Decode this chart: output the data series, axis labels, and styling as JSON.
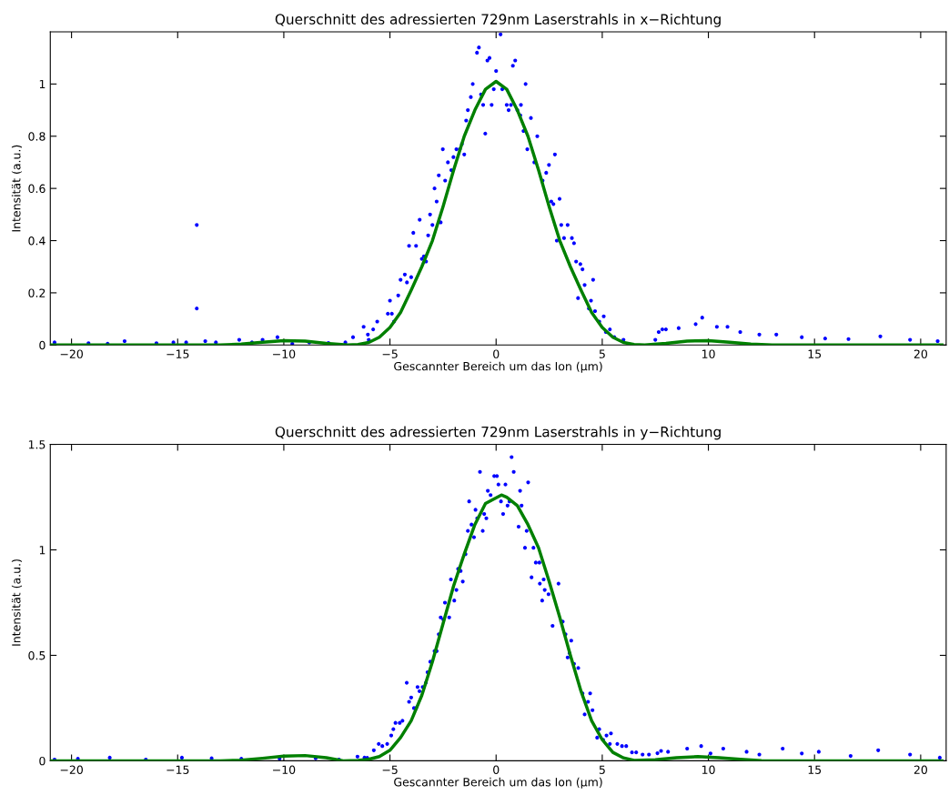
{
  "chart_data": [
    {
      "type": "scatter",
      "title": "Querschnitt des adressierten 729nm Laserstrahls in x−Richtung",
      "xlabel": "Gescannter Bereich um das Ion (µm)",
      "ylabel": "Intensität (a.u.)",
      "xlim": [
        -21,
        21.2
      ],
      "ylim": [
        0,
        1.2
      ],
      "xticks": [
        {
          "value": -20,
          "label": "−20"
        },
        {
          "value": -15,
          "label": "−15"
        },
        {
          "value": -10,
          "label": "−10"
        },
        {
          "value": -5,
          "label": "−5"
        },
        0,
        5,
        10,
        15,
        20
      ],
      "yticks": [
        0,
        0.2,
        0.4,
        0.6,
        0.8,
        1
      ],
      "grid": false,
      "legend": false,
      "series": [
        {
          "color": "#0000ff",
          "marker": "circle",
          "x": [
            0.21,
            -0.81,
            -0.9,
            -0.31,
            -0.41,
            0.9,
            0.79,
            0,
            -1.1,
            1.39,
            -0.11,
            0.29,
            -1.19,
            -0.71,
            -0.61,
            -0.21,
            0.5,
            0.7,
            0.59,
            1.0,
            1.17,
            -1.41,
            -1.33,
            -0.51,
            1.14,
            1.64,
            1.29,
            1.94,
            -1.61,
            -1.87,
            -1.71,
            -2.51,
            -1.5,
            -2.01,
            1.47,
            2.77,
            -2.27,
            1.8,
            2.49,
            -2.11,
            -2.4,
            -2.7,
            2.19,
            2.36,
            -2.9,
            -2.8,
            2.6,
            2.99,
            2.7,
            -3.11,
            -3.0,
            -2.61,
            -3.6,
            -3.2,
            3.07,
            3.37,
            2.86,
            3.2,
            3.57,
            3.67,
            -3.9,
            -4.1,
            -3.77,
            -3.4,
            -3.5,
            -3.3,
            -4.3,
            -4.0,
            -4.5,
            -4.2,
            3.77,
            3.97,
            4.07,
            3.86,
            4.17,
            4.57,
            -4.61,
            -5.0,
            -4.81,
            -4.91,
            4.37,
            4.47,
            4.66,
            4.86,
            5.07,
            -5.1,
            -5.6,
            -5.79,
            -6.24,
            -6.04,
            -6.74,
            5.17,
            5.36,
            5.57,
            6.0,
            7.5,
            7.83,
            -14.1,
            -14.1,
            9.71,
            9.4,
            7.66,
            8.0,
            8.6,
            10.4,
            10.9,
            11.5,
            12.4,
            13.2,
            14.4,
            15.5,
            16.6,
            18.1,
            19.5,
            20.8,
            -12.1,
            -11.0,
            -10.3,
            -13.2,
            -14.6,
            -17.5,
            -19.2,
            -16.0,
            -8.8,
            -7.1,
            -6.0,
            -20.8,
            -18.3,
            -15.2,
            -13.7,
            -11.5,
            -9.6,
            -7.9
          ],
          "values": [
            1.19,
            1.14,
            1.12,
            1.1,
            1.09,
            1.09,
            1.07,
            1.05,
            1.0,
            1.0,
            0.98,
            0.98,
            0.95,
            0.96,
            0.92,
            0.92,
            0.92,
            0.92,
            0.9,
            0.9,
            0.92,
            0.86,
            0.9,
            0.81,
            0.88,
            0.87,
            0.82,
            0.8,
            0.77,
            0.75,
            0.75,
            0.75,
            0.73,
            0.72,
            0.75,
            0.73,
            0.7,
            0.7,
            0.69,
            0.67,
            0.63,
            0.65,
            0.63,
            0.66,
            0.6,
            0.55,
            0.55,
            0.56,
            0.54,
            0.5,
            0.46,
            0.47,
            0.48,
            0.42,
            0.46,
            0.46,
            0.4,
            0.41,
            0.41,
            0.39,
            0.43,
            0.38,
            0.38,
            0.34,
            0.33,
            0.32,
            0.27,
            0.26,
            0.25,
            0.24,
            0.32,
            0.31,
            0.29,
            0.18,
            0.23,
            0.25,
            0.19,
            0.17,
            0.09,
            0.12,
            0.14,
            0.17,
            0.13,
            0.09,
            0.11,
            0.12,
            0.09,
            0.06,
            0.07,
            0.04,
            0.03,
            0.05,
            0.06,
            0.03,
            0.02,
            0.02,
            0.06,
            0.14,
            0.46,
            0.105,
            0.08,
            0.05,
            0.06,
            0.065,
            0.07,
            0.07,
            0.05,
            0.04,
            0.04,
            0.03,
            0.025,
            0.023,
            0.033,
            0.02,
            0.015,
            0.02,
            0.02,
            0.03,
            0.01,
            0.01,
            0.015,
            0.007,
            0.007,
            0.01,
            0.01,
            0.02,
            0.01,
            0.005,
            0.01,
            0.015,
            0.01,
            0.005,
            0.008
          ]
        },
        {
          "type": "line",
          "color": "#008000",
          "marker": "none",
          "line_style": "solid",
          "x": [
            -21,
            -19,
            -17,
            -15,
            -13,
            -12,
            -11,
            -10,
            -9,
            -8,
            -7,
            -6.5,
            -6,
            -5.5,
            -5,
            -4.5,
            -4,
            -3.5,
            -3,
            -2.5,
            -2,
            -1.5,
            -1,
            -0.5,
            0,
            0.5,
            1,
            1.5,
            2,
            2.5,
            3,
            3.5,
            4,
            4.5,
            5,
            5.5,
            6,
            6.5,
            7,
            8,
            9,
            10,
            11,
            12,
            13,
            15,
            17,
            19,
            21
          ],
          "values": [
            0,
            0,
            0,
            0,
            0,
            0.004,
            0.011,
            0.017,
            0.015,
            0.006,
            0,
            0.002,
            0.01,
            0.03,
            0.067,
            0.125,
            0.21,
            0.3,
            0.4,
            0.53,
            0.67,
            0.8,
            0.9,
            0.98,
            1.01,
            0.98,
            0.9,
            0.8,
            0.67,
            0.53,
            0.4,
            0.3,
            0.21,
            0.125,
            0.067,
            0.03,
            0.01,
            0.002,
            0,
            0.006,
            0.015,
            0.017,
            0.011,
            0.004,
            0,
            0,
            0,
            0,
            0
          ]
        }
      ]
    },
    {
      "type": "scatter",
      "title": "Querschnitt des adressierten 729nm Laserstrahls in y−Richtung",
      "xlabel": "Gescannter Bereich um das Ion (µm)",
      "ylabel": "Intensität (a.u.)",
      "xlim": [
        -21,
        21.2
      ],
      "ylim": [
        0,
        1.5
      ],
      "xticks": [
        {
          "value": -20,
          "label": "−20"
        },
        {
          "value": -15,
          "label": "−15"
        },
        {
          "value": -10,
          "label": "−10"
        },
        {
          "value": -5,
          "label": "−5"
        },
        0,
        5,
        10,
        15,
        20
      ],
      "yticks": [
        0,
        0.5,
        1,
        1.5
      ],
      "grid": false,
      "legend": false,
      "series": [
        {
          "color": "#0000ff",
          "marker": "circle",
          "x": [
            0.73,
            0.83,
            -0.76,
            -0.09,
            0.04,
            1.51,
            0.11,
            0.44,
            -0.39,
            1.13,
            -0.26,
            -1.27,
            0.23,
            0.63,
            0.54,
            1.2,
            -0.97,
            -0.56,
            0.33,
            -0.89,
            -0.46,
            -1.16,
            1.06,
            1.44,
            -1.33,
            -0.63,
            -1.04,
            1.36,
            1.76,
            -1.44,
            1.87,
            2.04,
            -1.79,
            -1.67,
            1.67,
            2.24,
            -2.13,
            -1.57,
            2.06,
            2.94,
            -1.87,
            2.29,
            2.47,
            -1.97,
            -2.41,
            2.17,
            -2.61,
            -2.21,
            -2.49,
            3.07,
            2.66,
            3.14,
            -2.7,
            3.27,
            3.54,
            -2.9,
            -2.8,
            3.37,
            3.46,
            3.67,
            3.87,
            -3.1,
            -3.23,
            -4.21,
            -3.31,
            -3.46,
            -3.7,
            -3.61,
            -4.0,
            -4.1,
            -3.87,
            -3.77,
            -4.54,
            -4.74,
            -4.41,
            -4.84,
            -4.94,
            -5.13,
            -5.53,
            -5.36,
            -5.76,
            -6.07,
            -6.53,
            4.07,
            4.43,
            4.33,
            4.17,
            4.54,
            4.86,
            4.76,
            5.04,
            5.2,
            5.41,
            5.36,
            5.71,
            5.93,
            6.13,
            6.4,
            6.6,
            6.9,
            7.2,
            7.6,
            7.77,
            9.66,
            9.0,
            10.7,
            8.1,
            11.8,
            13.5,
            14.4,
            15.2,
            16.7,
            18.0,
            19.5,
            20.9,
            12.4,
            10.1,
            -6.2,
            -18.2,
            -14.8,
            -12.0,
            -10.2,
            -8.5,
            -20.8,
            -16.5,
            -13.4,
            -7.4,
            -19.7
          ],
          "values": [
            1.44,
            1.37,
            1.37,
            1.35,
            1.35,
            1.32,
            1.31,
            1.31,
            1.28,
            1.28,
            1.26,
            1.23,
            1.23,
            1.23,
            1.21,
            1.21,
            1.19,
            1.17,
            1.17,
            1.15,
            1.15,
            1.12,
            1.11,
            1.09,
            1.09,
            1.09,
            1.06,
            1.01,
            1.01,
            0.98,
            0.94,
            0.94,
            0.91,
            0.9,
            0.87,
            0.86,
            0.86,
            0.85,
            0.84,
            0.84,
            0.81,
            0.81,
            0.79,
            0.76,
            0.75,
            0.76,
            0.68,
            0.68,
            0.67,
            0.66,
            0.64,
            0.66,
            0.6,
            0.6,
            0.57,
            0.52,
            0.52,
            0.49,
            0.51,
            0.46,
            0.44,
            0.47,
            0.42,
            0.37,
            0.37,
            0.35,
            0.35,
            0.33,
            0.3,
            0.28,
            0.25,
            0.25,
            0.18,
            0.18,
            0.19,
            0.15,
            0.12,
            0.08,
            0.08,
            0.07,
            0.05,
            0.014,
            0.02,
            0.32,
            0.32,
            0.28,
            0.22,
            0.24,
            0.15,
            0.11,
            0.1,
            0.12,
            0.13,
            0.08,
            0.08,
            0.07,
            0.07,
            0.04,
            0.04,
            0.03,
            0.03,
            0.036,
            0.047,
            0.07,
            0.058,
            0.058,
            0.043,
            0.043,
            0.058,
            0.035,
            0.043,
            0.023,
            0.05,
            0.03,
            0.015,
            0.03,
            0.035,
            0.015,
            0.015,
            0.015,
            0.01,
            0.01,
            0.012,
            0.006,
            0.006,
            0.012,
            0.006,
            0.01
          ]
        },
        {
          "type": "line",
          "color": "#008000",
          "marker": "none",
          "line_style": "solid",
          "x": [
            -21,
            -19,
            -17,
            -15,
            -13,
            -12,
            -11,
            -10,
            -9,
            -8,
            -7.2,
            -6.5,
            -6,
            -5.5,
            -5,
            -4.5,
            -4,
            -3.5,
            -3,
            -2.5,
            -2,
            -1.5,
            -1,
            -0.5,
            0.25,
            0.5,
            1,
            1.5,
            2,
            2.5,
            3,
            3.5,
            4,
            4.5,
            5,
            5.5,
            6,
            6.5,
            7.5,
            8.5,
            9.5,
            10.5,
            11.5,
            12.5,
            13.5,
            15,
            17,
            19,
            21
          ],
          "values": [
            0,
            0,
            0,
            0,
            0,
            0.003,
            0.012,
            0.022,
            0.025,
            0.015,
            0,
            0.002,
            0.007,
            0.02,
            0.05,
            0.11,
            0.19,
            0.31,
            0.47,
            0.65,
            0.83,
            0.98,
            1.12,
            1.22,
            1.26,
            1.25,
            1.21,
            1.12,
            1.01,
            0.85,
            0.68,
            0.5,
            0.33,
            0.19,
            0.1,
            0.04,
            0.014,
            0.002,
            0.005,
            0.015,
            0.02,
            0.015,
            0.007,
            0.001,
            0,
            0,
            0,
            0,
            0
          ]
        }
      ]
    }
  ]
}
